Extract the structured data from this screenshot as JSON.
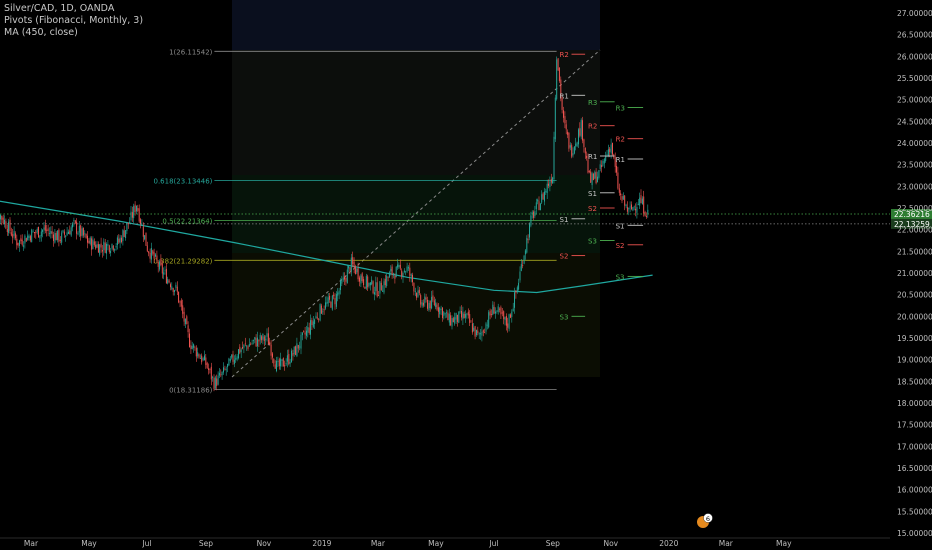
{
  "legend": {
    "symbol_line": "Silver/CAD, 1D, OANDA",
    "pivots_line": "Pivots (Fibonacci, Monthly, 3)",
    "ma_line": "MA (450, close)"
  },
  "colors": {
    "background": "#000000",
    "up_candle": "#26a69a",
    "down_candle": "#ef5350",
    "ma_line": "#1fa8a0",
    "fib_1": "#8a8a8a",
    "fib_0618": "#26a69a",
    "fib_05": "#4caf50",
    "fib_0382": "#a5a521",
    "fib_0": "#8a8a8a",
    "pivot_resistance": "#ef5350",
    "pivot_support": "#4caf50",
    "pivot_r1": "#c8c8c8",
    "price_label_bg": "#2e7d32",
    "axis_text": "#bfbfbf"
  },
  "chart_data": {
    "type": "candlestick",
    "title": "Silver/CAD, 1D, OANDA",
    "y_axis": {
      "ylim": [
        14.75,
        27.25
      ],
      "tick_labels": [
        "15.00000",
        "15.50000",
        "16.00000",
        "16.50000",
        "17.00000",
        "17.50000",
        "18.00000",
        "18.50000",
        "19.00000",
        "19.50000",
        "20.00000",
        "20.50000",
        "21.00000",
        "21.50000",
        "22.00000",
        "22.50000",
        "23.00000",
        "23.50000",
        "24.00000",
        "24.50000",
        "25.00000",
        "25.50000",
        "26.00000",
        "26.50000",
        "27.00000"
      ],
      "tick_values": [
        15.0,
        15.5,
        16.0,
        16.5,
        17.0,
        17.5,
        18.0,
        18.5,
        19.0,
        19.5,
        20.0,
        20.5,
        21.0,
        21.5,
        22.0,
        22.5,
        23.0,
        23.5,
        24.0,
        24.5,
        25.0,
        25.5,
        26.0,
        26.5,
        27.0
      ],
      "price_labels": [
        {
          "text": "22.36216",
          "value": 22.36216
        },
        {
          "text": "22.13259",
          "value": 22.13259
        }
      ]
    },
    "x_axis": {
      "tick_labels": [
        "Mar",
        "May",
        "Jul",
        "Sep",
        "Nov",
        "2019",
        "Mar",
        "May",
        "Jul",
        "Sep",
        "Nov",
        "2020",
        "Mar",
        "May"
      ],
      "tick_dates": [
        "2018-03-01",
        "2018-05-01",
        "2018-07-01",
        "2018-09-01",
        "2018-11-01",
        "2019-01-01",
        "2019-03-01",
        "2019-05-01",
        "2019-07-01",
        "2019-09-01",
        "2019-11-01",
        "2020-01-01",
        "2020-03-01",
        "2020-05-01"
      ]
    },
    "close_path": [
      [
        "2018-01-15",
        22.7
      ],
      [
        "2018-02-01",
        22.2
      ],
      [
        "2018-02-15",
        21.7
      ],
      [
        "2018-03-01",
        21.9
      ],
      [
        "2018-03-15",
        22.0
      ],
      [
        "2018-04-01",
        21.8
      ],
      [
        "2018-04-15",
        22.1
      ],
      [
        "2018-05-01",
        21.7
      ],
      [
        "2018-05-15",
        21.6
      ],
      [
        "2018-06-01",
        21.7
      ],
      [
        "2018-06-15",
        22.3
      ],
      [
        "2018-06-20",
        22.6
      ],
      [
        "2018-07-01",
        21.6
      ],
      [
        "2018-07-15",
        21.1
      ],
      [
        "2018-08-01",
        20.6
      ],
      [
        "2018-08-15",
        19.4
      ],
      [
        "2018-09-01",
        18.9
      ],
      [
        "2018-09-10",
        18.45
      ],
      [
        "2018-09-20",
        18.7
      ],
      [
        "2018-10-05",
        19.2
      ],
      [
        "2018-10-20",
        19.4
      ],
      [
        "2018-11-05",
        19.5
      ],
      [
        "2018-11-15",
        18.8
      ],
      [
        "2018-12-01",
        19.1
      ],
      [
        "2018-12-15",
        19.6
      ],
      [
        "2019-01-01",
        20.2
      ],
      [
        "2019-01-15",
        20.4
      ],
      [
        "2019-02-01",
        21.2
      ],
      [
        "2019-02-15",
        20.8
      ],
      [
        "2019-03-01",
        20.6
      ],
      [
        "2019-03-15",
        21.0
      ],
      [
        "2019-04-01",
        21.1
      ],
      [
        "2019-04-15",
        20.3
      ],
      [
        "2019-05-01",
        20.3
      ],
      [
        "2019-05-15",
        19.9
      ],
      [
        "2019-06-01",
        20.0
      ],
      [
        "2019-06-15",
        19.5
      ],
      [
        "2019-07-01",
        20.2
      ],
      [
        "2019-07-15",
        19.8
      ],
      [
        "2019-07-25",
        20.6
      ],
      [
        "2019-08-01",
        21.4
      ],
      [
        "2019-08-10",
        22.3
      ],
      [
        "2019-08-20",
        22.7
      ],
      [
        "2019-09-01",
        23.3
      ],
      [
        "2019-09-05",
        26.1
      ],
      [
        "2019-09-12",
        24.5
      ],
      [
        "2019-09-20",
        23.8
      ],
      [
        "2019-10-01",
        24.4
      ],
      [
        "2019-10-10",
        23.1
      ],
      [
        "2019-10-20",
        23.3
      ],
      [
        "2019-11-01",
        24.0
      ],
      [
        "2019-11-10",
        22.8
      ],
      [
        "2019-11-20",
        22.4
      ],
      [
        "2019-12-01",
        22.7
      ],
      [
        "2019-12-10",
        22.36
      ]
    ],
    "moving_average": {
      "name": "MA (450, close)",
      "points": [
        [
          "2018-01-15",
          22.7
        ],
        [
          "2018-06-01",
          22.2
        ],
        [
          "2018-10-01",
          21.7
        ],
        [
          "2019-01-01",
          21.3
        ],
        [
          "2019-04-01",
          20.9
        ],
        [
          "2019-07-01",
          20.6
        ],
        [
          "2019-08-15",
          20.55
        ],
        [
          "2019-10-01",
          20.7
        ],
        [
          "2019-12-15",
          20.95
        ]
      ]
    },
    "fibonacci": {
      "start_date": "2018-09-10",
      "end_date": "2019-09-05",
      "levels": [
        {
          "label": "1(26.11542)",
          "value": 26.11542,
          "color_key": "fib_1"
        },
        {
          "label": "0.618(23.13446)",
          "value": 23.13446,
          "color_key": "fib_0618"
        },
        {
          "label": "0.5(22.21364)",
          "value": 22.21364,
          "color_key": "fib_05"
        },
        {
          "label": "0.382(21.29282)",
          "value": 21.29282,
          "color_key": "fib_0382"
        },
        {
          "label": "0(18.31186)",
          "value": 18.31186,
          "color_key": "fib_0"
        }
      ]
    },
    "pivots": [
      {
        "label": "R2",
        "value": 26.05,
        "start": "2019-09-08",
        "end": "2019-10-05",
        "kind": "resistance"
      },
      {
        "label": "R1",
        "value": 25.1,
        "start": "2019-09-08",
        "end": "2019-10-05",
        "kind": "r1"
      },
      {
        "label": "S3",
        "value": 20.0,
        "start": "2019-09-08",
        "end": "2019-10-05",
        "kind": "support"
      },
      {
        "label": "R3",
        "value": 24.95,
        "start": "2019-10-08",
        "end": "2019-11-05",
        "kind": "support"
      },
      {
        "label": "R2",
        "value": 24.4,
        "start": "2019-10-08",
        "end": "2019-11-05",
        "kind": "resistance"
      },
      {
        "label": "R1",
        "value": 23.7,
        "start": "2019-10-08",
        "end": "2019-11-05",
        "kind": "r1"
      },
      {
        "label": "S2",
        "value": 21.4,
        "start": "2019-09-08",
        "end": "2019-10-05",
        "kind": "resistance"
      },
      {
        "label": "S3",
        "value": 21.75,
        "start": "2019-10-08",
        "end": "2019-11-05",
        "kind": "support"
      },
      {
        "label": "R3",
        "value": 24.82,
        "start": "2019-11-06",
        "end": "2019-12-05",
        "kind": "support"
      },
      {
        "label": "R2",
        "value": 24.1,
        "start": "2019-11-06",
        "end": "2019-12-05",
        "kind": "resistance"
      },
      {
        "label": "R1",
        "value": 23.63,
        "start": "2019-11-06",
        "end": "2019-12-05",
        "kind": "r1"
      },
      {
        "label": "S1",
        "value": 22.1,
        "start": "2019-11-06",
        "end": "2019-12-05",
        "kind": "r1"
      },
      {
        "label": "S2",
        "value": 21.65,
        "start": "2019-11-06",
        "end": "2019-12-05",
        "kind": "resistance"
      },
      {
        "label": "S3",
        "value": 20.92,
        "start": "2019-11-06",
        "end": "2019-12-05",
        "kind": "support"
      },
      {
        "label": "S1",
        "value": 22.85,
        "start": "2019-10-08",
        "end": "2019-11-05",
        "kind": "r1"
      },
      {
        "label": "S2",
        "value": 22.5,
        "start": "2019-10-08",
        "end": "2019-11-05",
        "kind": "resistance"
      },
      {
        "label": "S1",
        "value": 22.25,
        "start": "2019-09-08",
        "end": "2019-10-05",
        "kind": "r1"
      }
    ],
    "grid": false,
    "marker_badge": "6"
  }
}
